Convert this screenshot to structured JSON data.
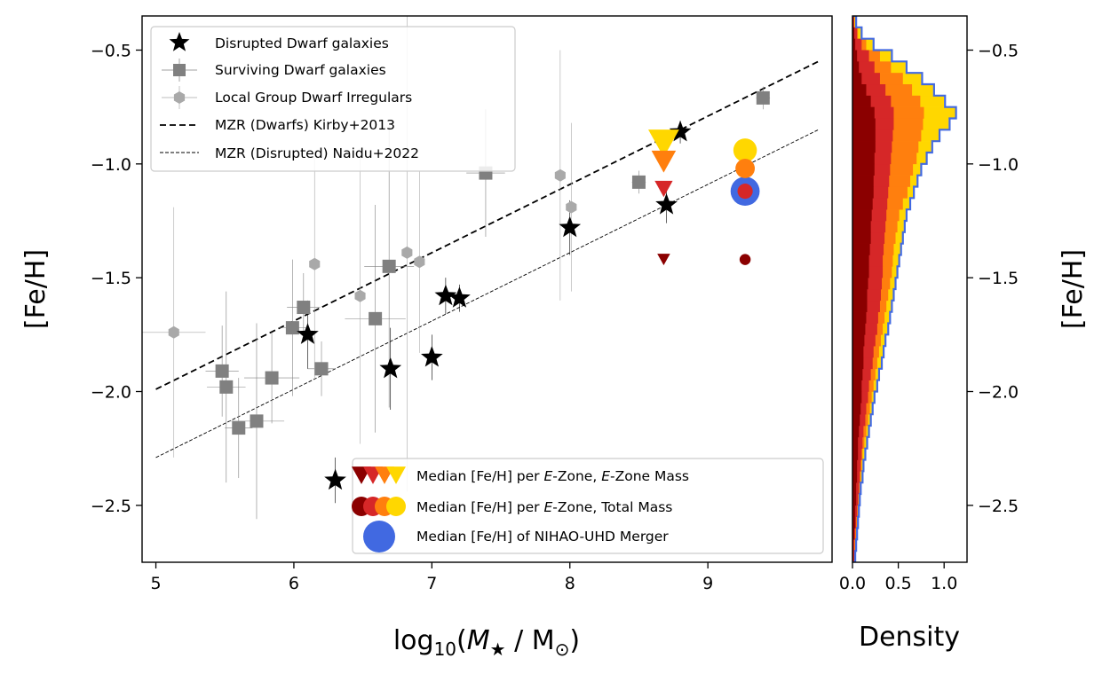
{
  "chart_data": {
    "type": "scatter",
    "main": {
      "xlabel": "log10(M★ / M⊙)",
      "ylabel": "[Fe/H]",
      "xlim": [
        4.9,
        9.9
      ],
      "ylim": [
        -2.75,
        -0.35
      ],
      "xticks": [
        5,
        6,
        7,
        8,
        9
      ],
      "yticks": [
        -2.5,
        -2.0,
        -1.5,
        -1.0,
        -0.5
      ],
      "xtick_labels": [
        "5",
        "6",
        "7",
        "8",
        "9"
      ],
      "ytick_labels": [
        "−2.5",
        "−2.0",
        "−1.5",
        "−1.0",
        "−0.5"
      ]
    },
    "series": [
      {
        "name": "Disrupted Dwarf galaxies",
        "marker": "star",
        "color": "#000000",
        "points": [
          [
            6.1,
            -1.75,
            0.0,
            0.15
          ],
          [
            6.3,
            -2.39,
            0.0,
            0.1
          ],
          [
            6.7,
            -1.9,
            0.0,
            0.18
          ],
          [
            7.0,
            -1.85,
            0.0,
            0.1
          ],
          [
            7.1,
            -1.58,
            0.0,
            0.08
          ],
          [
            7.2,
            -1.59,
            0.0,
            0.06
          ],
          [
            8.0,
            -1.28,
            0.0,
            0.12
          ],
          [
            8.7,
            -1.18,
            0.0,
            0.08
          ],
          [
            8.8,
            -0.86,
            0.0,
            0.05
          ]
        ]
      },
      {
        "name": "Surviving Dwarf galaxies",
        "marker": "square",
        "color": "#808080",
        "points": [
          [
            5.48,
            -1.91,
            0.12,
            0.2
          ],
          [
            5.51,
            -1.98,
            0.14,
            0.42
          ],
          [
            5.6,
            -2.16,
            0.1,
            0.22
          ],
          [
            5.73,
            -2.13,
            0.2,
            0.43
          ],
          [
            5.84,
            -1.94,
            0.2,
            0.2
          ],
          [
            5.99,
            -1.72,
            0.1,
            0.3
          ],
          [
            6.07,
            -1.63,
            0.12,
            0.15
          ],
          [
            6.2,
            -1.9,
            0.1,
            0.12
          ],
          [
            6.59,
            -1.68,
            0.22,
            0.5
          ],
          [
            6.69,
            -1.45,
            0.18,
            0.62
          ],
          [
            7.39,
            -1.04,
            0.14,
            0.28
          ],
          [
            8.5,
            -1.08,
            0.05,
            0.05
          ],
          [
            9.4,
            -0.71,
            0.05,
            0.05
          ]
        ]
      },
      {
        "name": "Local Group Dwarf Irregulars",
        "marker": "hexagon",
        "color": "#a9a9a9",
        "points": [
          [
            5.13,
            -1.74,
            0.23,
            0.55
          ],
          [
            6.15,
            -1.44,
            0.0,
            0.5
          ],
          [
            6.48,
            -1.58,
            0.0,
            0.65
          ],
          [
            6.82,
            -1.39,
            0.0,
            1.05
          ],
          [
            6.91,
            -1.43,
            0.0,
            0.4
          ],
          [
            7.93,
            -1.05,
            0.0,
            0.55
          ],
          [
            8.01,
            -1.19,
            0.0,
            0.37
          ]
        ]
      }
    ],
    "lines": [
      {
        "name": "MZR (Dwarfs) Kirby+2013",
        "style": "dashed",
        "x": [
          5.0,
          9.8
        ],
        "y": [
          -1.99,
          -0.55
        ]
      },
      {
        "name": "MZR (Disrupted) Naidu+2022",
        "style": "dashed-thin",
        "x": [
          5.0,
          9.8
        ],
        "y": [
          -2.29,
          -0.85
        ]
      }
    ],
    "ezone_markers": {
      "triangles_x": 8.68,
      "triangles": [
        {
          "y": -0.91,
          "color": "#ffd700",
          "size": 24
        },
        {
          "y": -0.99,
          "color": "#ff7f0e",
          "size": 19
        },
        {
          "y": -1.11,
          "color": "#d62728",
          "size": 14
        },
        {
          "y": -1.42,
          "color": "#8b0000",
          "size": 10
        }
      ],
      "circles_x": 9.27,
      "circles": [
        {
          "y": -1.12,
          "color": "#4169e1",
          "r": 21
        },
        {
          "y": -0.94,
          "color": "#ffd700",
          "r": 17
        },
        {
          "y": -1.02,
          "color": "#ff7f0e",
          "r": 14
        },
        {
          "y": -1.12,
          "color": "#d62728",
          "r": 11
        },
        {
          "y": -1.42,
          "color": "#8b0000",
          "r": 8
        }
      ]
    },
    "legend_upper": [
      "Disrupted Dwarf galaxies",
      "Surviving Dwarf galaxies",
      "Local Group Dwarf Irregulars",
      "MZR (Dwarfs) Kirby+2013",
      "MZR (Disrupted) Naidu+2022"
    ],
    "legend_lower": [
      "Median [Fe/H] per E-Zone, E-Zone Mass",
      "Median [Fe/H] per E-Zone, Total Mass",
      "Median [Fe/H] of NIHAO-UHD Merger"
    ],
    "side_panel": {
      "type": "histogram",
      "xlabel": "Density",
      "ylabel": "[Fe/H]",
      "xlim": [
        0.0,
        1.25
      ],
      "xticks": [
        0.0,
        0.5,
        1.0
      ],
      "xtick_labels": [
        "0.0",
        "0.5",
        "1.0"
      ],
      "bins": [
        -2.75,
        -2.7,
        -2.65,
        -2.6,
        -2.55,
        -2.5,
        -2.45,
        -2.4,
        -2.35,
        -2.3,
        -2.25,
        -2.2,
        -2.15,
        -2.1,
        -2.05,
        -2.0,
        -1.95,
        -1.9,
        -1.85,
        -1.8,
        -1.75,
        -1.7,
        -1.65,
        -1.6,
        -1.55,
        -1.5,
        -1.45,
        -1.4,
        -1.35,
        -1.3,
        -1.25,
        -1.2,
        -1.15,
        -1.1,
        -1.05,
        -1.0,
        -0.95,
        -0.9,
        -0.85,
        -0.8,
        -0.75,
        -0.7,
        -0.65,
        -0.6,
        -0.55,
        -0.5,
        -0.45,
        -0.4,
        -0.35
      ],
      "stacks": [
        {
          "color": "#8b0000",
          "values": [
            0.01,
            0.01,
            0.02,
            0.03,
            0.03,
            0.04,
            0.04,
            0.05,
            0.05,
            0.06,
            0.06,
            0.07,
            0.08,
            0.09,
            0.1,
            0.1,
            0.11,
            0.12,
            0.12,
            0.13,
            0.14,
            0.15,
            0.16,
            0.16,
            0.17,
            0.18,
            0.18,
            0.19,
            0.2,
            0.2,
            0.21,
            0.22,
            0.23,
            0.23,
            0.24,
            0.24,
            0.25,
            0.25,
            0.25,
            0.24,
            0.2,
            0.15,
            0.1,
            0.07,
            0.05,
            0.03,
            0.02,
            0.01
          ]
        },
        {
          "color": "#d62728",
          "values": [
            0.02,
            0.02,
            0.03,
            0.04,
            0.05,
            0.06,
            0.07,
            0.08,
            0.09,
            0.1,
            0.11,
            0.12,
            0.14,
            0.15,
            0.17,
            0.18,
            0.2,
            0.22,
            0.23,
            0.25,
            0.27,
            0.28,
            0.3,
            0.31,
            0.32,
            0.33,
            0.33,
            0.34,
            0.35,
            0.36,
            0.37,
            0.38,
            0.39,
            0.4,
            0.41,
            0.42,
            0.43,
            0.44,
            0.45,
            0.45,
            0.42,
            0.36,
            0.3,
            0.24,
            0.18,
            0.1,
            0.05,
            0.02
          ]
        },
        {
          "color": "#ff7f0e",
          "values": [
            0.02,
            0.03,
            0.04,
            0.05,
            0.06,
            0.07,
            0.08,
            0.09,
            0.1,
            0.11,
            0.13,
            0.15,
            0.17,
            0.19,
            0.21,
            0.23,
            0.25,
            0.27,
            0.29,
            0.31,
            0.33,
            0.35,
            0.37,
            0.39,
            0.41,
            0.43,
            0.44,
            0.45,
            0.47,
            0.49,
            0.51,
            0.55,
            0.6,
            0.63,
            0.66,
            0.7,
            0.72,
            0.75,
            0.77,
            0.78,
            0.74,
            0.65,
            0.55,
            0.42,
            0.3,
            0.15,
            0.06,
            0.02
          ]
        },
        {
          "color": "#ffd700",
          "values": [
            0.02,
            0.03,
            0.04,
            0.05,
            0.06,
            0.07,
            0.08,
            0.1,
            0.11,
            0.13,
            0.15,
            0.17,
            0.19,
            0.21,
            0.23,
            0.26,
            0.28,
            0.31,
            0.33,
            0.35,
            0.38,
            0.4,
            0.42,
            0.44,
            0.46,
            0.48,
            0.5,
            0.52,
            0.54,
            0.56,
            0.58,
            0.62,
            0.66,
            0.7,
            0.74,
            0.8,
            0.86,
            0.94,
            1.05,
            1.12,
            1.0,
            0.88,
            0.75,
            0.58,
            0.42,
            0.22,
            0.09,
            0.03
          ]
        }
      ],
      "total_outline_color": "#4169e1",
      "total_values": [
        0.03,
        0.04,
        0.05,
        0.06,
        0.07,
        0.08,
        0.09,
        0.11,
        0.12,
        0.14,
        0.16,
        0.18,
        0.2,
        0.22,
        0.24,
        0.27,
        0.29,
        0.32,
        0.34,
        0.36,
        0.39,
        0.41,
        0.43,
        0.45,
        0.47,
        0.49,
        0.51,
        0.53,
        0.55,
        0.57,
        0.59,
        0.63,
        0.67,
        0.71,
        0.75,
        0.81,
        0.87,
        0.95,
        1.06,
        1.13,
        1.01,
        0.89,
        0.76,
        0.59,
        0.43,
        0.23,
        0.1,
        0.04
      ]
    }
  }
}
